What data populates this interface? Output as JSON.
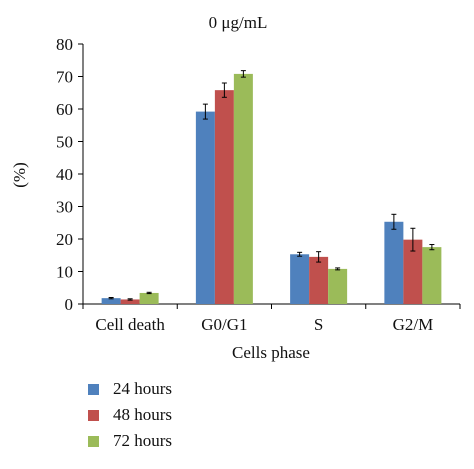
{
  "chart_data": {
    "type": "bar",
    "title": "0 μg/mL",
    "xlabel": "Cells phase",
    "ylabel": "(%)",
    "ylim": [
      0,
      80
    ],
    "yticks": [
      0,
      10,
      20,
      30,
      40,
      50,
      60,
      70,
      80
    ],
    "grid": false,
    "legend_position": "bottom-left",
    "categories": [
      "Cell death",
      "G0/G1",
      "S",
      "G2/M"
    ],
    "series": [
      {
        "name": "24 hours",
        "color": "#4f81bd",
        "values": [
          1.8,
          59.2,
          15.3,
          25.3
        ],
        "errors": [
          0.2,
          2.3,
          0.6,
          2.3
        ]
      },
      {
        "name": "48 hours",
        "color": "#c0504d",
        "values": [
          1.4,
          65.8,
          14.5,
          19.8
        ],
        "errors": [
          0.2,
          2.2,
          1.6,
          3.5
        ]
      },
      {
        "name": "72 hours",
        "color": "#9bbb59",
        "values": [
          3.4,
          70.8,
          10.8,
          17.5
        ],
        "errors": [
          0.2,
          1.0,
          0.3,
          0.8
        ]
      }
    ]
  }
}
